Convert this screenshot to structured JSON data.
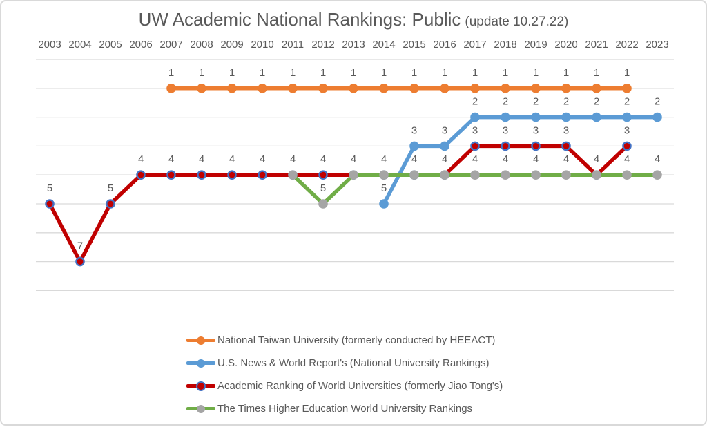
{
  "title": {
    "main": "UW Academic National Rankings: Public",
    "suffix": "(update 10.27.22)"
  },
  "styles": {
    "grid_color": "#D9D9D9",
    "text_color": "#595959",
    "background": "#FFFFFF",
    "frame_border": "#D9D9D9",
    "marker_ring_color": "#4472C4"
  },
  "chart_data": {
    "type": "line",
    "title": "UW Academic National Rankings: Public (update 10.27.22)",
    "xlabel": "",
    "ylabel": "",
    "x_axis_position": "top",
    "x": [
      2003,
      2004,
      2005,
      2006,
      2007,
      2008,
      2009,
      2010,
      2011,
      2012,
      2013,
      2014,
      2015,
      2016,
      2017,
      2018,
      2019,
      2020,
      2021,
      2022,
      2023
    ],
    "y_axis": {
      "inverted": true,
      "range": [
        0,
        8
      ],
      "gridlines_every": 1,
      "tick_labels_visible": false
    },
    "grid": "horizontal",
    "legend_position": "bottom",
    "data_labels": {
      "visible": true,
      "position": "above"
    },
    "series": [
      {
        "id": "ntu",
        "name": "National Taiwan University (formerly conducted by HEEACT)",
        "line_color": "#ED7D31",
        "marker_fill": "#ED7D31",
        "points": [
          [
            2007,
            1
          ],
          [
            2008,
            1
          ],
          [
            2009,
            1
          ],
          [
            2010,
            1
          ],
          [
            2011,
            1
          ],
          [
            2012,
            1
          ],
          [
            2013,
            1
          ],
          [
            2014,
            1
          ],
          [
            2015,
            1
          ],
          [
            2016,
            1
          ],
          [
            2017,
            1
          ],
          [
            2018,
            1
          ],
          [
            2019,
            1
          ],
          [
            2020,
            1
          ],
          [
            2021,
            1
          ],
          [
            2022,
            1
          ]
        ]
      },
      {
        "id": "usnews",
        "name": "U.S. News & World Report's (National University Rankings)",
        "line_color": "#5B9BD5",
        "marker_fill": "#5B9BD5",
        "points": [
          [
            2014,
            5
          ],
          [
            2015,
            3
          ],
          [
            2016,
            3
          ],
          [
            2017,
            2
          ],
          [
            2018,
            2
          ],
          [
            2019,
            2
          ],
          [
            2020,
            2
          ],
          [
            2021,
            2
          ],
          [
            2022,
            2
          ],
          [
            2023,
            2
          ]
        ]
      },
      {
        "id": "arwu",
        "name": "Academic Ranking of World Universities (formerly Jiao Tong's)",
        "line_color": "#C00000",
        "marker_fill": "#C00000",
        "marker_stroke": "#4472C4",
        "points": [
          [
            2003,
            5
          ],
          [
            2004,
            7
          ],
          [
            2005,
            5
          ],
          [
            2006,
            4
          ],
          [
            2007,
            4
          ],
          [
            2008,
            4
          ],
          [
            2009,
            4
          ],
          [
            2010,
            4
          ],
          [
            2011,
            4
          ],
          [
            2012,
            4
          ],
          [
            2013,
            4
          ],
          [
            2014,
            4
          ],
          [
            2015,
            4
          ],
          [
            2016,
            4
          ],
          [
            2017,
            3
          ],
          [
            2018,
            3
          ],
          [
            2019,
            3
          ],
          [
            2020,
            3
          ],
          [
            2021,
            4
          ],
          [
            2022,
            3
          ]
        ]
      },
      {
        "id": "the",
        "name": "The Times Higher Education World University Rankings",
        "line_color": "#70AD47",
        "marker_fill": "#A5A5A5",
        "points": [
          [
            2011,
            4
          ],
          [
            2012,
            5
          ],
          [
            2013,
            4
          ],
          [
            2014,
            4
          ],
          [
            2015,
            4
          ],
          [
            2016,
            4
          ],
          [
            2017,
            4
          ],
          [
            2018,
            4
          ],
          [
            2019,
            4
          ],
          [
            2020,
            4
          ],
          [
            2021,
            4
          ],
          [
            2022,
            4
          ],
          [
            2023,
            4
          ]
        ]
      }
    ]
  },
  "legend": {
    "items": [
      {
        "label": "National Taiwan University (formerly conducted by HEEACT)"
      },
      {
        "label": "U.S. News & World Report's (National University Rankings)"
      },
      {
        "label": "Academic Ranking of World Universities (formerly Jiao Tong's)"
      },
      {
        "label": "The Times Higher Education World University Rankings"
      }
    ]
  }
}
